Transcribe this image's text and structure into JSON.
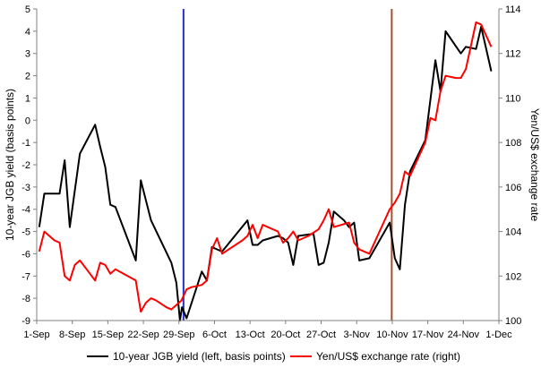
{
  "chart_data": {
    "type": "line",
    "title": "",
    "ylabel_left": "10-year JGB yield (basis points)",
    "ylabel_right": "Yen/US$ exchange rate",
    "ylim_left": [
      -9,
      5
    ],
    "ylim_right": [
      100,
      114
    ],
    "y_ticks_left": [
      "5",
      "4",
      "3",
      "2",
      "1",
      "0",
      "-1",
      "-2",
      "-3",
      "-4",
      "-5",
      "-6",
      "-7",
      "-8",
      "-9"
    ],
    "y_ticks_right": [
      "114",
      "112",
      "110",
      "108",
      "106",
      "104",
      "102",
      "100"
    ],
    "x_ticks": [
      "1-Sep",
      "8-Sep",
      "15-Sep",
      "22-Sep",
      "29-Sep",
      "6-Oct",
      "13-Oct",
      "20-Oct",
      "27-Oct",
      "3-Nov",
      "10-Nov",
      "17-Nov",
      "24-Nov",
      "1-Dec"
    ],
    "x_range_days": [
      0,
      91
    ],
    "grid": false,
    "legend_position": "bottom",
    "vertical_lines": [
      {
        "day": 28.9,
        "color": "#2233cc"
      },
      {
        "day": 69.9,
        "color": "#a0522d"
      }
    ],
    "series": [
      {
        "name": "10-year JGB yield (left, basis points)",
        "axis": "left",
        "color": "#000000",
        "points": [
          [
            0.5,
            -4.8
          ],
          [
            1.5,
            -3.3
          ],
          [
            2.5,
            -3.3
          ],
          [
            4.5,
            -3.3
          ],
          [
            5.5,
            -1.8
          ],
          [
            6.5,
            -4.8
          ],
          [
            8.5,
            -1.5
          ],
          [
            11.5,
            -0.2
          ],
          [
            12.5,
            -1.2
          ],
          [
            13.5,
            -2.1
          ],
          [
            14.5,
            -3.8
          ],
          [
            15.5,
            -3.9
          ],
          [
            19.5,
            -6.3
          ],
          [
            20.5,
            -2.7
          ],
          [
            22.5,
            -4.5
          ],
          [
            26.5,
            -6.4
          ],
          [
            27.5,
            -7.3
          ],
          [
            28.2,
            -9.0
          ],
          [
            28.6,
            -8.4
          ],
          [
            29.5,
            -8.9
          ],
          [
            32.5,
            -6.8
          ],
          [
            33.5,
            -7.2
          ],
          [
            34.5,
            -5.7
          ],
          [
            35.5,
            -5.8
          ],
          [
            36.5,
            -5.9
          ],
          [
            41.5,
            -4.5
          ],
          [
            42.5,
            -5.6
          ],
          [
            43.5,
            -5.6
          ],
          [
            44.5,
            -5.4
          ],
          [
            47.5,
            -5.2
          ],
          [
            48.5,
            -5.3
          ],
          [
            49.5,
            -5.5
          ],
          [
            50.5,
            -6.5
          ],
          [
            51.5,
            -5.2
          ],
          [
            54.5,
            -5.1
          ],
          [
            55.5,
            -6.5
          ],
          [
            56.5,
            -6.4
          ],
          [
            57.5,
            -5.5
          ],
          [
            58.5,
            -4.1
          ],
          [
            60.5,
            -4.5
          ],
          [
            61.5,
            -4.8
          ],
          [
            62.5,
            -4.6
          ],
          [
            63.5,
            -6.3
          ],
          [
            65.5,
            -6.2
          ],
          [
            69.5,
            -4.6
          ],
          [
            70.5,
            -6.2
          ],
          [
            71.5,
            -6.7
          ],
          [
            72.5,
            -3.8
          ],
          [
            73.5,
            -2.3
          ],
          [
            76.5,
            -0.9
          ],
          [
            78.5,
            2.7
          ],
          [
            79.5,
            1.3
          ],
          [
            80.5,
            4.0
          ],
          [
            83.5,
            3.0
          ],
          [
            84.5,
            3.3
          ],
          [
            86.5,
            3.2
          ],
          [
            87.5,
            4.2
          ],
          [
            89.5,
            2.2
          ]
        ]
      },
      {
        "name": "Yen/US$ exchange rate (right)",
        "axis": "right",
        "color": "#ff0000",
        "points": [
          [
            0.5,
            103.1
          ],
          [
            1.5,
            104.0
          ],
          [
            3.5,
            103.6
          ],
          [
            4.5,
            103.5
          ],
          [
            5.5,
            102.0
          ],
          [
            6.5,
            101.8
          ],
          [
            7.5,
            102.5
          ],
          [
            8.5,
            102.7
          ],
          [
            9.5,
            102.4
          ],
          [
            11.5,
            101.8
          ],
          [
            12.5,
            102.6
          ],
          [
            13.5,
            102.5
          ],
          [
            14.5,
            102.1
          ],
          [
            15.5,
            102.3
          ],
          [
            19.5,
            101.8
          ],
          [
            20.5,
            100.4
          ],
          [
            21.5,
            100.8
          ],
          [
            22.5,
            101.0
          ],
          [
            23.5,
            100.9
          ],
          [
            25.5,
            100.6
          ],
          [
            26.5,
            100.5
          ],
          [
            27.5,
            100.7
          ],
          [
            28.5,
            100.9
          ],
          [
            29.5,
            101.4
          ],
          [
            30.5,
            101.5
          ],
          [
            32.5,
            101.6
          ],
          [
            33.5,
            101.8
          ],
          [
            34.5,
            103.2
          ],
          [
            35.5,
            103.7
          ],
          [
            36.5,
            103.0
          ],
          [
            40.5,
            103.6
          ],
          [
            41.5,
            103.8
          ],
          [
            42.5,
            104.3
          ],
          [
            43.5,
            103.7
          ],
          [
            44.5,
            104.3
          ],
          [
            47.5,
            104.0
          ],
          [
            48.5,
            103.5
          ],
          [
            49.5,
            103.7
          ],
          [
            50.5,
            104.0
          ],
          [
            51.5,
            103.6
          ],
          [
            53.5,
            103.8
          ],
          [
            55.5,
            104.1
          ],
          [
            56.5,
            104.5
          ],
          [
            57.5,
            105.0
          ],
          [
            58.5,
            104.2
          ],
          [
            61.5,
            104.4
          ],
          [
            62.5,
            103.5
          ],
          [
            63.5,
            103.2
          ],
          [
            65.5,
            103.0
          ],
          [
            69.5,
            105.0
          ],
          [
            70.5,
            105.3
          ],
          [
            71.5,
            105.7
          ],
          [
            72.5,
            106.7
          ],
          [
            73.5,
            106.5
          ],
          [
            76.5,
            108.0
          ],
          [
            77.5,
            109.1
          ],
          [
            78.5,
            109.0
          ],
          [
            79.5,
            110.3
          ],
          [
            80.5,
            111.0
          ],
          [
            82.5,
            110.9
          ],
          [
            83.5,
            110.9
          ],
          [
            84.5,
            111.3
          ],
          [
            86.5,
            113.4
          ],
          [
            87.5,
            113.3
          ],
          [
            89.5,
            112.3
          ]
        ]
      }
    ]
  }
}
